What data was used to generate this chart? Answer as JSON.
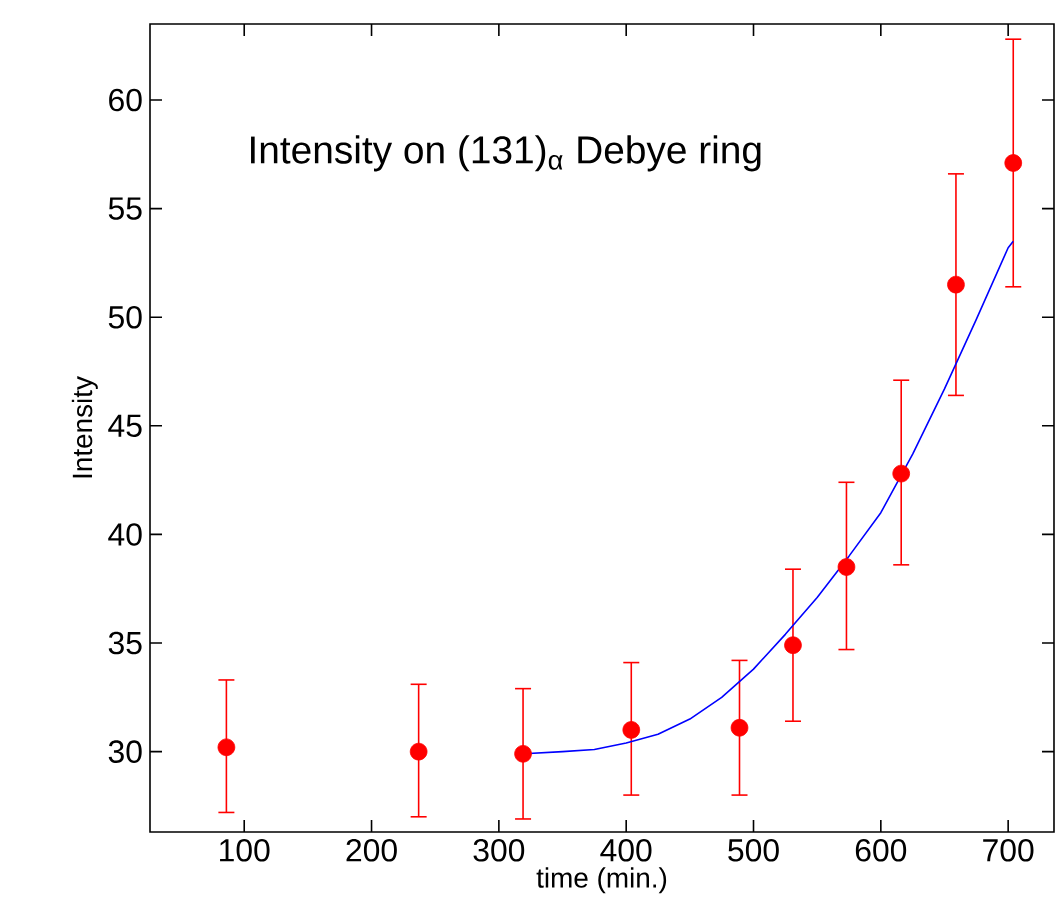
{
  "chart_data": {
    "type": "scatter",
    "xlabel": "time (min.)",
    "ylabel": "Intensity",
    "annotations": [
      "Intensity on  (131)$_{α}$ Debye ring"
    ],
    "xlim": [
      26,
      736
    ],
    "ylim": [
      26.3,
      63.5
    ],
    "xticks": [
      100,
      200,
      300,
      400,
      500,
      600,
      700
    ],
    "yticks": [
      30,
      35,
      40,
      45,
      50,
      55,
      60
    ],
    "grid": false,
    "series": [
      {
        "color": "#ff0000",
        "marker": "circle",
        "x": [
          86,
          237,
          319,
          404,
          489,
          531,
          573,
          616,
          659,
          704
        ],
        "values": [
          30.2,
          30.0,
          29.9,
          31.0,
          31.1,
          34.9,
          38.5,
          42.8,
          51.5,
          57.1
        ],
        "errors": [
          [
            27.2,
            33.3
          ],
          [
            27.0,
            33.1
          ],
          [
            26.9,
            32.9
          ],
          [
            28.0,
            34.1
          ],
          [
            28.0,
            34.2
          ],
          [
            31.4,
            38.4
          ],
          [
            34.7,
            42.4
          ],
          [
            38.6,
            47.1
          ],
          [
            46.4,
            56.6
          ],
          [
            51.4,
            62.8
          ]
        ]
      },
      {
        "type": "line",
        "color": "#0000ff",
        "marker": "none",
        "line_style": "solid",
        "x": [
          320,
          350,
          375,
          400,
          425,
          450,
          475,
          500,
          525,
          550,
          575,
          600,
          625,
          650,
          675,
          700,
          704
        ],
        "values": [
          29.9,
          30.0,
          30.1,
          30.4,
          30.8,
          31.5,
          32.5,
          33.8,
          35.4,
          37.1,
          39.0,
          41.0,
          43.7,
          46.7,
          49.9,
          53.2,
          53.5
        ]
      }
    ]
  }
}
